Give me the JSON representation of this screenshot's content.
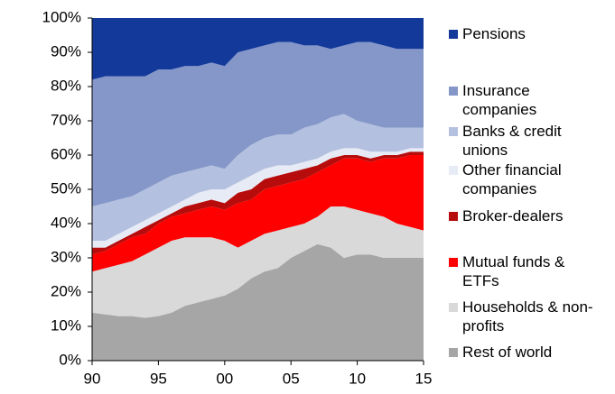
{
  "chart_data": {
    "type": "stacked_area",
    "x": [
      1990,
      1991,
      1992,
      1993,
      1994,
      1995,
      1996,
      1997,
      1998,
      1999,
      2000,
      2001,
      2002,
      2003,
      2004,
      2005,
      2006,
      2007,
      2008,
      2009,
      2010,
      2011,
      2012,
      2013,
      2014,
      2015
    ],
    "series": [
      {
        "name": "Rest of world",
        "color": "#a6a6a6",
        "values": [
          14,
          13.5,
          13,
          13,
          12.5,
          13,
          14,
          16,
          17,
          18,
          19,
          21,
          24,
          26,
          27,
          30,
          32,
          34,
          33,
          30,
          31,
          31,
          30,
          30,
          30,
          30
        ]
      },
      {
        "name": "Households & non-profits",
        "color": "#d9d9d9",
        "values": [
          12,
          13.5,
          15,
          16,
          18.5,
          20,
          21,
          20,
          19,
          18,
          16,
          12,
          11,
          11,
          11,
          9,
          8,
          8,
          12,
          15,
          13,
          12,
          12,
          10,
          9,
          8
        ]
      },
      {
        "name": "Mutual funds & ETFs",
        "color": "#ff0000",
        "values": [
          5,
          5,
          6,
          7,
          6,
          7,
          7,
          7,
          8,
          9,
          9,
          13,
          12,
          13,
          13,
          13,
          13,
          13,
          12,
          14,
          15,
          15,
          17,
          19,
          21,
          22
        ]
      },
      {
        "name": "Broker-dealers",
        "color": "#b70c0c",
        "values": [
          2,
          1,
          1,
          1,
          2,
          1,
          1,
          2,
          2,
          2,
          2,
          3,
          3,
          3,
          3,
          3,
          3,
          2,
          2,
          1,
          1,
          1,
          1,
          1,
          1,
          1
        ]
      },
      {
        "name": "Other financial companies",
        "color": "#e6ebf5",
        "values": [
          2,
          2,
          2,
          2,
          2,
          2,
          2,
          2,
          3,
          3,
          4,
          3,
          4,
          3,
          3,
          2,
          2,
          2,
          2,
          2,
          2,
          2,
          1,
          1,
          1,
          1
        ]
      },
      {
        "name": "Banks & credit unions",
        "color": "#b4c0df",
        "values": [
          10,
          11,
          10,
          9,
          9,
          9,
          9,
          8,
          7,
          7,
          6,
          8,
          9,
          9,
          9,
          9,
          10,
          10,
          10,
          10,
          8,
          8,
          7,
          7,
          6,
          6
        ]
      },
      {
        "name": "Insurance companies",
        "color": "#8497c8",
        "values": [
          37,
          37,
          36,
          35,
          33,
          33,
          31,
          31,
          30,
          30,
          30,
          30,
          28,
          27,
          27,
          27,
          24,
          23,
          20,
          20,
          23,
          24,
          24,
          23,
          23,
          23
        ]
      },
      {
        "name": "Pensions",
        "color": "#13399a",
        "values": [
          18,
          17,
          17,
          17,
          17,
          15,
          15,
          14,
          14,
          13,
          14,
          10,
          9,
          8,
          7,
          7,
          8,
          8,
          9,
          8,
          7,
          7,
          8,
          9,
          9,
          9
        ]
      }
    ],
    "xlim": [
      1990,
      2015
    ],
    "xticks": [
      {
        "value": 1990,
        "label": "90"
      },
      {
        "value": 1995,
        "label": "95"
      },
      {
        "value": 2000,
        "label": "00"
      },
      {
        "value": 2005,
        "label": "05"
      },
      {
        "value": 2010,
        "label": "10"
      },
      {
        "value": 2015,
        "label": "15"
      }
    ],
    "ylim": [
      0,
      100
    ],
    "yticks": [
      {
        "value": 0,
        "label": "0%"
      },
      {
        "value": 10,
        "label": "10%"
      },
      {
        "value": 20,
        "label": "20%"
      },
      {
        "value": 30,
        "label": "30%"
      },
      {
        "value": 40,
        "label": "40%"
      },
      {
        "value": 50,
        "label": "50%"
      },
      {
        "value": 60,
        "label": "60%"
      },
      {
        "value": 70,
        "label": "70%"
      },
      {
        "value": 80,
        "label": "80%"
      },
      {
        "value": 90,
        "label": "90%"
      },
      {
        "value": 100,
        "label": "100%"
      }
    ],
    "grid": false,
    "legend": "right"
  }
}
